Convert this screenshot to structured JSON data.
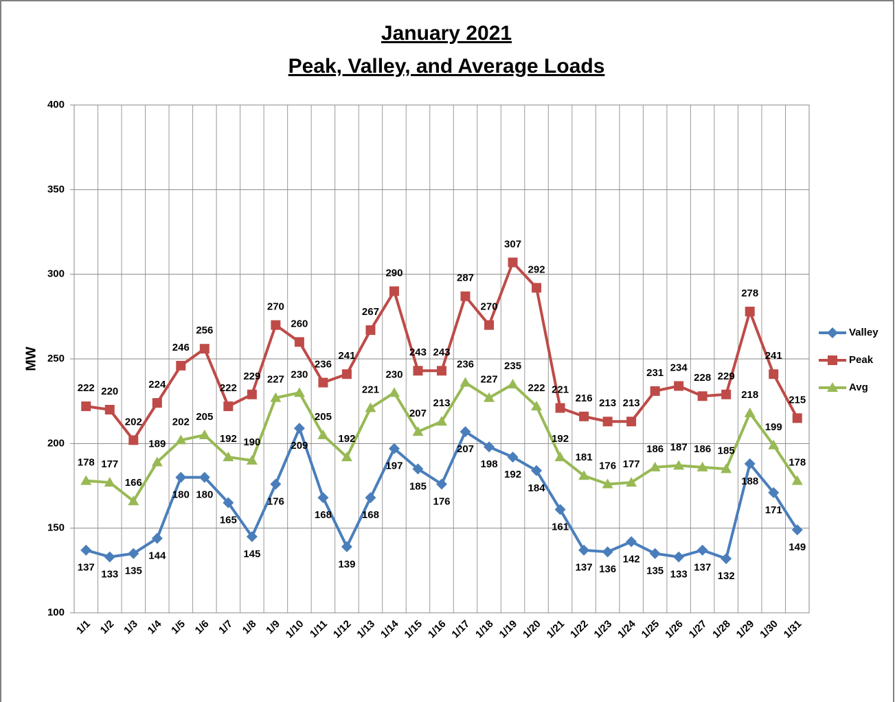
{
  "chart_data": {
    "type": "line",
    "title": "January 2021",
    "subtitle": "Peak, Valley, and Average Loads",
    "y_label": "MW",
    "categories": [
      "1/1",
      "1/2",
      "1/3",
      "1/4",
      "1/5",
      "1/6",
      "1/7",
      "1/8",
      "1/9",
      "1/10",
      "1/11",
      "1/12",
      "1/13",
      "1/14",
      "1/15",
      "1/16",
      "1/17",
      "1/18",
      "1/19",
      "1/20",
      "1/21",
      "1/22",
      "1/23",
      "1/24",
      "1/25",
      "1/26",
      "1/27",
      "1/28",
      "1/29",
      "1/30",
      "1/31"
    ],
    "series": [
      {
        "name": "Valley",
        "color": "#4a7ebb",
        "marker": "diamond",
        "label_position": "below",
        "values": [
          137,
          133,
          135,
          144,
          180,
          180,
          165,
          145,
          176,
          209,
          168,
          139,
          168,
          197,
          185,
          176,
          207,
          198,
          192,
          184,
          161,
          137,
          136,
          142,
          135,
          133,
          137,
          132,
          188,
          171,
          149
        ]
      },
      {
        "name": "Peak",
        "color": "#be4b48",
        "marker": "square",
        "label_position": "above",
        "values": [
          222,
          220,
          202,
          224,
          246,
          256,
          222,
          229,
          270,
          260,
          236,
          241,
          267,
          290,
          243,
          243,
          287,
          270,
          307,
          292,
          221,
          216,
          213,
          213,
          231,
          234,
          228,
          229,
          278,
          241,
          215
        ]
      },
      {
        "name": "Avg",
        "color": "#98b954",
        "marker": "triangle",
        "label_position": "above",
        "values": [
          178,
          177,
          166,
          189,
          202,
          205,
          192,
          190,
          227,
          230,
          205,
          192,
          221,
          230,
          207,
          213,
          236,
          227,
          235,
          222,
          192,
          181,
          176,
          177,
          186,
          187,
          186,
          185,
          218,
          199,
          178
        ]
      }
    ],
    "ylim": [
      100,
      400
    ],
    "yticks": [
      100,
      150,
      200,
      250,
      300,
      350,
      400
    ],
    "grid": true,
    "legend": "right"
  }
}
